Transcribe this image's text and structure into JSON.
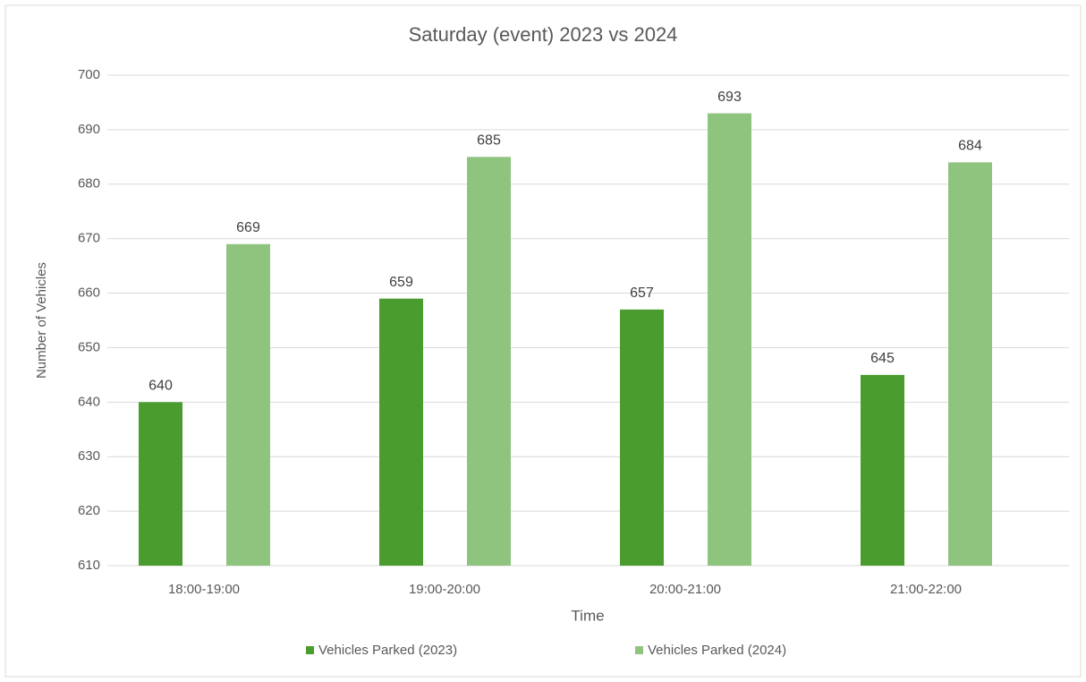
{
  "chart_data": {
    "type": "bar",
    "title": "Saturday (event) 2023 vs 2024",
    "x_label": "Time",
    "y_label": "Number of Vehicles",
    "categories": [
      "18:00-19:00",
      "19:00-20:00",
      "20:00-21:00",
      "21:00-22:00"
    ],
    "series": [
      {
        "name": "Vehicles Parked (2023)",
        "color": "#4a9c2e",
        "values": [
          640,
          659,
          657,
          645
        ]
      },
      {
        "name": "Vehicles Parked (2024)",
        "color": "#8fc47f",
        "values": [
          669,
          685,
          693,
          684
        ]
      }
    ],
    "ylim": [
      610,
      700
    ],
    "yticks": [
      610,
      620,
      630,
      640,
      650,
      660,
      670,
      680,
      690,
      700
    ],
    "grid": true,
    "legend": "bottom"
  }
}
